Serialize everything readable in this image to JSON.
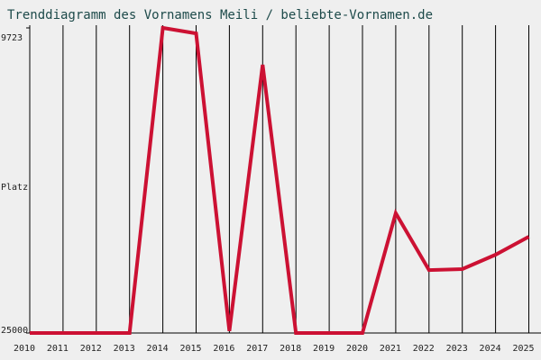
{
  "chart_data": {
    "type": "line",
    "title": "Trenddiagramm des Vornamens Meili / beliebte-Vornamen.de",
    "y_label": "Platz",
    "categories": [
      "2010",
      "2011",
      "2012",
      "2013",
      "2014",
      "2015",
      "2016",
      "2017",
      "2018",
      "2019",
      "2020",
      "2021",
      "2022",
      "2023",
      "2024",
      "2025"
    ],
    "series": [
      {
        "name": "Meili",
        "color": "#cc1133",
        "values": [
          25000,
          25000,
          25000,
          25000,
          9723,
          10000,
          24900,
          11570,
          25000,
          25000,
          25000,
          19000,
          21850,
          21800,
          21080,
          20180
        ]
      }
    ],
    "ylim": [
      25000,
      9723
    ],
    "yticks": [
      9723,
      25000
    ],
    "grid": true
  }
}
